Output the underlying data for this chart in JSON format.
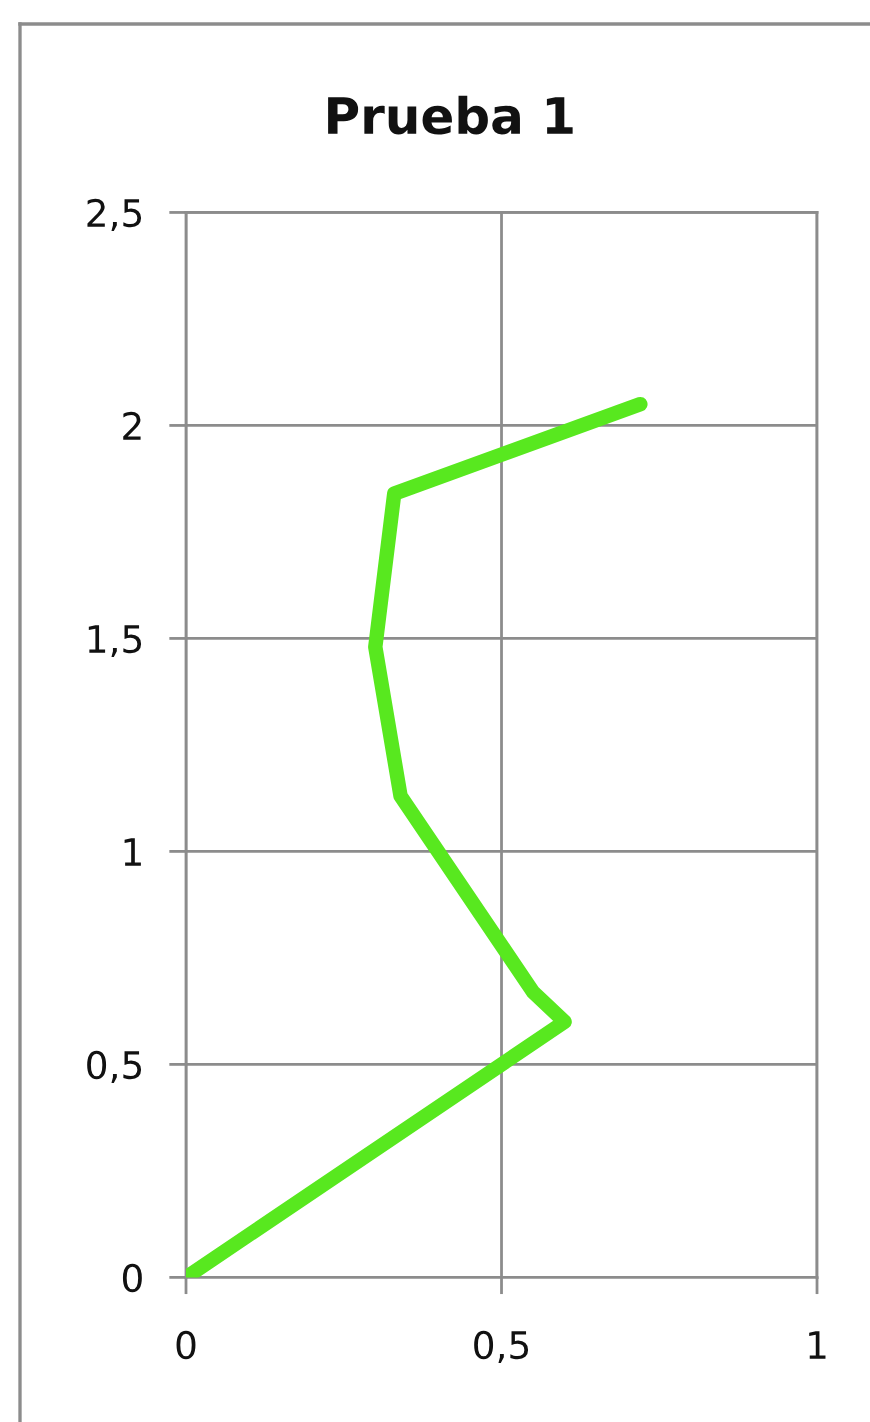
{
  "chart_data": {
    "type": "line",
    "title": "Prueba 1",
    "x": [
      0,
      0.6,
      0.55,
      0.34,
      0.3,
      0.33,
      0.72
    ],
    "series": [
      {
        "color": "#58e81f",
        "values": [
          0,
          0.6,
          0.67,
          1.13,
          1.48,
          1.84,
          2.05
        ]
      }
    ],
    "xlim": [
      0,
      1
    ],
    "xticks": [
      0,
      {
        "value": 0.5,
        "label": "0,5"
      },
      1
    ],
    "ylim": [
      0,
      2.5
    ],
    "yticks": [
      0,
      {
        "value": 0.5,
        "label": "0,5"
      },
      1,
      {
        "value": 1.5,
        "label": "1,5"
      },
      2,
      {
        "value": 2.5,
        "label": "2,5"
      }
    ],
    "grid": true,
    "marker": "none",
    "line_style": "solid"
  }
}
